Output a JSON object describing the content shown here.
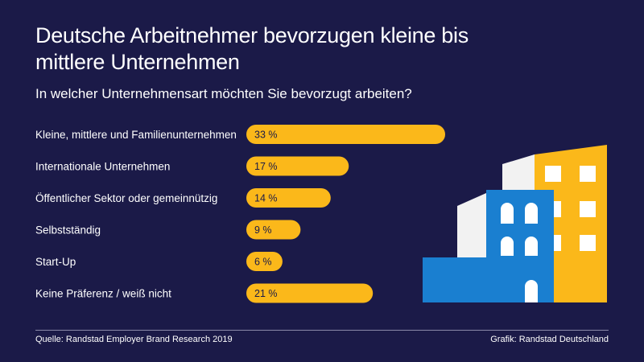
{
  "chart_data": {
    "type": "bar",
    "orientation": "horizontal",
    "title": "Deutsche Arbeitnehmer bevorzugen kleine bis mittlere Unternehmen",
    "subtitle": "In welcher Unternehmensart möchten Sie bevorzugt arbeiten?",
    "categories": [
      "Kleine, mittlere und Familienunternehmen",
      "Internationale Unternehmen",
      "Öffentlicher Sektor oder gemeinnützig",
      "Selbstständig",
      "Start-Up",
      "Keine Präferenz / weiß nicht"
    ],
    "values": [
      33,
      17,
      14,
      9,
      6,
      21
    ],
    "value_labels": [
      "33 %",
      "17 %",
      "14 %",
      "9 %",
      "6 %",
      "21 %"
    ],
    "unit": "%",
    "xlim": [
      0,
      35
    ],
    "bar_color": "#fbb81a",
    "grid": false
  },
  "footer": {
    "source": "Quelle: Randstad Employer Brand Research 2019",
    "credit": "Grafik: Randstad Deutschland"
  },
  "colors": {
    "background": "#1b1a48",
    "bar": "#fbb81a",
    "building_blue": "#1a7fd0",
    "building_yellow": "#fbb81a",
    "building_white": "#f2f2f2"
  }
}
